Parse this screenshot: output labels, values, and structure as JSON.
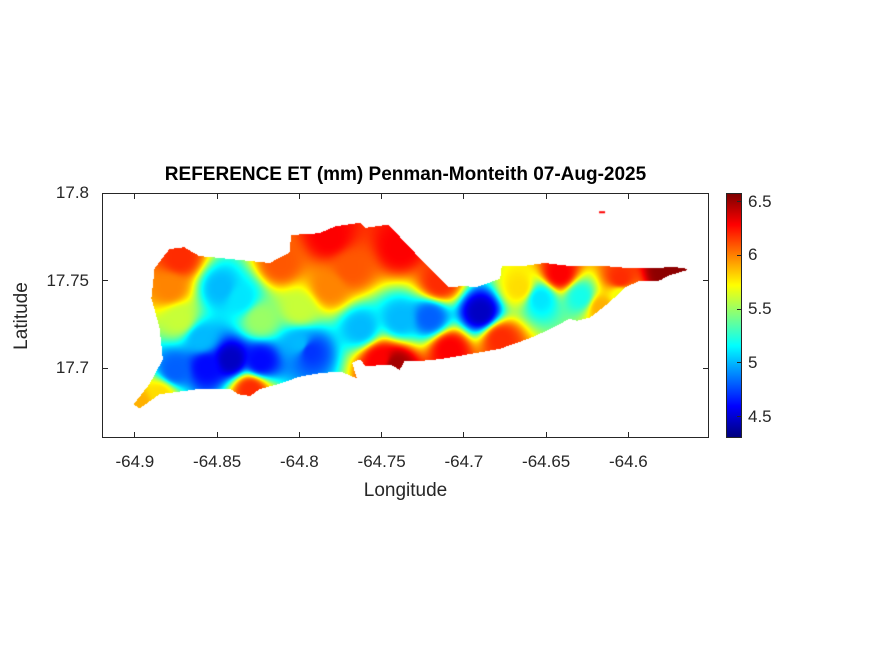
{
  "chart_data": {
    "type": "heatmap",
    "title": "REFERENCE ET (mm) Penman-Monteith 07-Aug-2025",
    "xlabel": "Longitude",
    "ylabel": "Latitude",
    "xlim": [
      -64.92,
      -64.551
    ],
    "ylim": [
      17.66,
      17.8
    ],
    "xticks": [
      -64.9,
      -64.85,
      -64.8,
      -64.75,
      -64.7,
      -64.65,
      -64.6
    ],
    "xtick_labels": [
      "-64.9",
      "-64.85",
      "-64.8",
      "-64.75",
      "-64.7",
      "-64.65",
      "-64.6"
    ],
    "yticks": [
      17.7,
      17.75,
      17.8
    ],
    "ytick_labels": [
      "17.7",
      "17.75",
      "17.8"
    ],
    "colormap": "jet",
    "clim": [
      4.3,
      6.58
    ],
    "colorbar_ticks": [
      4.5,
      5,
      5.5,
      6,
      6.5
    ],
    "colorbar_tick_labels": [
      "4.5",
      "5",
      "5.5",
      "6",
      "6.5"
    ],
    "grid": false,
    "outline": [
      [
        -64.901,
        17.679
      ],
      [
        -64.891,
        17.691
      ],
      [
        -64.883,
        17.705
      ],
      [
        -64.885,
        17.723
      ],
      [
        -64.89,
        17.74
      ],
      [
        -64.888,
        17.757
      ],
      [
        -64.879,
        17.768
      ],
      [
        -64.87,
        17.769
      ],
      [
        -64.861,
        17.764
      ],
      [
        -64.839,
        17.762
      ],
      [
        -64.818,
        17.76
      ],
      [
        -64.806,
        17.766
      ],
      [
        -64.805,
        17.776
      ],
      [
        -64.788,
        17.777
      ],
      [
        -64.778,
        17.781
      ],
      [
        -64.763,
        17.783
      ],
      [
        -64.76,
        17.78
      ],
      [
        -64.746,
        17.782
      ],
      [
        -64.739,
        17.775
      ],
      [
        -64.721,
        17.757
      ],
      [
        -64.709,
        17.746
      ],
      [
        -64.7,
        17.747
      ],
      [
        -64.693,
        17.746
      ],
      [
        -64.678,
        17.751
      ],
      [
        -64.677,
        17.758
      ],
      [
        -64.666,
        17.758
      ],
      [
        -64.651,
        17.76
      ],
      [
        -64.633,
        17.758
      ],
      [
        -64.611,
        17.758
      ],
      [
        -64.599,
        17.757
      ],
      [
        -64.581,
        17.757
      ],
      [
        -64.575,
        17.758
      ],
      [
        -64.566,
        17.757
      ],
      [
        -64.564,
        17.756
      ],
      [
        -64.575,
        17.753
      ],
      [
        -64.581,
        17.75
      ],
      [
        -64.593,
        17.75
      ],
      [
        -64.602,
        17.746
      ],
      [
        -64.611,
        17.738
      ],
      [
        -64.623,
        17.729
      ],
      [
        -64.631,
        17.727
      ],
      [
        -64.636,
        17.728
      ],
      [
        -64.648,
        17.722
      ],
      [
        -64.66,
        17.717
      ],
      [
        -64.669,
        17.714
      ],
      [
        -64.678,
        17.711
      ],
      [
        -64.696,
        17.708
      ],
      [
        -64.715,
        17.705
      ],
      [
        -64.727,
        17.704
      ],
      [
        -64.736,
        17.704
      ],
      [
        -64.739,
        17.699
      ],
      [
        -64.745,
        17.702
      ],
      [
        -64.76,
        17.701
      ],
      [
        -64.763,
        17.705
      ],
      [
        -64.768,
        17.703
      ],
      [
        -64.765,
        17.694
      ],
      [
        -64.775,
        17.698
      ],
      [
        -64.788,
        17.697
      ],
      [
        -64.8,
        17.695
      ],
      [
        -64.812,
        17.691
      ],
      [
        -64.824,
        17.688
      ],
      [
        -64.83,
        17.684
      ],
      [
        -64.837,
        17.685
      ],
      [
        -64.842,
        17.688
      ],
      [
        -64.861,
        17.688
      ],
      [
        -64.885,
        17.685
      ],
      [
        -64.897,
        17.677
      ]
    ],
    "islets": [
      {
        "lon": -64.616,
        "lat": 17.789,
        "value": 6.3
      }
    ],
    "samples": [
      {
        "lon": -64.842,
        "lat": 17.705,
        "value": 4.45
      },
      {
        "lon": -64.857,
        "lat": 17.701,
        "value": 4.6
      },
      {
        "lon": -64.824,
        "lat": 17.704,
        "value": 4.6
      },
      {
        "lon": -64.794,
        "lat": 17.71,
        "value": 4.7
      },
      {
        "lon": -64.69,
        "lat": 17.732,
        "value": 4.45
      },
      {
        "lon": -64.721,
        "lat": 17.729,
        "value": 4.8
      },
      {
        "lon": -64.876,
        "lat": 17.699,
        "value": 4.8
      },
      {
        "lon": -64.86,
        "lat": 17.717,
        "value": 5.0
      },
      {
        "lon": -64.8,
        "lat": 17.714,
        "value": 5.0
      },
      {
        "lon": -64.763,
        "lat": 17.723,
        "value": 5.0
      },
      {
        "lon": -64.739,
        "lat": 17.728,
        "value": 5.0
      },
      {
        "lon": -64.654,
        "lat": 17.74,
        "value": 5.1
      },
      {
        "lon": -64.629,
        "lat": 17.741,
        "value": 5.2
      },
      {
        "lon": -64.848,
        "lat": 17.746,
        "value": 5.0
      },
      {
        "lon": -64.836,
        "lat": 17.74,
        "value": 5.1
      },
      {
        "lon": -64.824,
        "lat": 17.728,
        "value": 5.5
      },
      {
        "lon": -64.8,
        "lat": 17.734,
        "value": 5.6
      },
      {
        "lon": -64.873,
        "lat": 17.728,
        "value": 5.6
      },
      {
        "lon": -64.605,
        "lat": 17.742,
        "value": 5.7
      },
      {
        "lon": -64.879,
        "lat": 17.746,
        "value": 6.0
      },
      {
        "lon": -64.782,
        "lat": 17.746,
        "value": 6.0
      },
      {
        "lon": -64.769,
        "lat": 17.757,
        "value": 6.1
      },
      {
        "lon": -64.782,
        "lat": 17.775,
        "value": 6.3
      },
      {
        "lon": -64.739,
        "lat": 17.769,
        "value": 6.3
      },
      {
        "lon": -64.642,
        "lat": 17.754,
        "value": 6.3
      },
      {
        "lon": -64.709,
        "lat": 17.711,
        "value": 6.3
      },
      {
        "lon": -64.83,
        "lat": 17.688,
        "value": 6.2
      },
      {
        "lon": -64.751,
        "lat": 17.705,
        "value": 6.3
      },
      {
        "lon": -64.578,
        "lat": 17.755,
        "value": 6.55
      },
      {
        "lon": -64.742,
        "lat": 17.702,
        "value": 6.5
      },
      {
        "lon": -64.873,
        "lat": 17.763,
        "value": 6.2
      },
      {
        "lon": -64.885,
        "lat": 17.685,
        "value": 5.8
      },
      {
        "lon": -64.897,
        "lat": 17.68,
        "value": 5.9
      },
      {
        "lon": -64.715,
        "lat": 17.749,
        "value": 6.2
      },
      {
        "lon": -64.678,
        "lat": 17.717,
        "value": 6.2
      },
      {
        "lon": -64.605,
        "lat": 17.751,
        "value": 6.2
      },
      {
        "lon": -64.812,
        "lat": 17.76,
        "value": 6.1
      },
      {
        "lon": -64.666,
        "lat": 17.746,
        "value": 5.8
      },
      {
        "lon": -64.617,
        "lat": 17.735,
        "value": 5.9
      }
    ]
  }
}
